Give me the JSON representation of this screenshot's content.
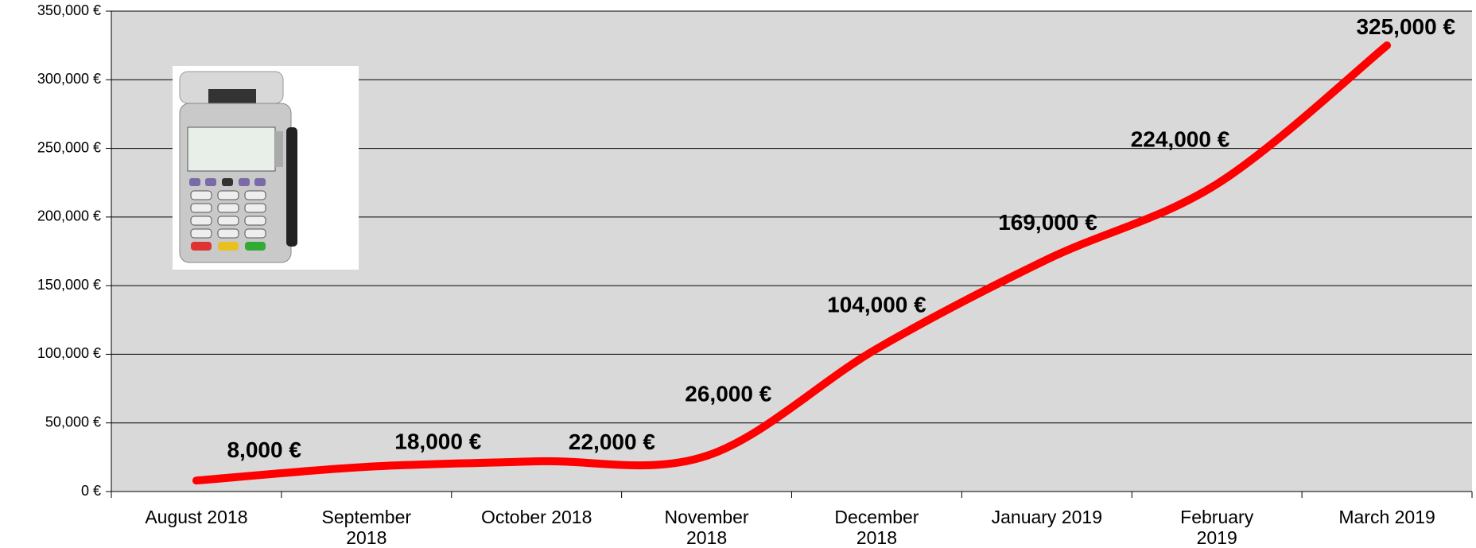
{
  "chart_data": {
    "type": "line",
    "categories": [
      "August 2018",
      "September 2018",
      "October 2018",
      "November 2018",
      "December 2018",
      "January 2019",
      "February 2019",
      "March 2019"
    ],
    "series": [
      {
        "color": "#ff0000",
        "values": [
          8000,
          18000,
          22000,
          26000,
          104000,
          169000,
          224000,
          325000
        ],
        "value_labels": [
          "8,000 €",
          "18,000 €",
          "22,000 €",
          "26,000 €",
          "104,000 €",
          "169,000 €",
          "224,000 €",
          "325,000 €"
        ]
      }
    ],
    "ylim": [
      0,
      350000
    ],
    "yticks": [
      {
        "value": 0,
        "label": "0 €"
      },
      {
        "value": 50000,
        "label": "50,000 €"
      },
      {
        "value": 100000,
        "label": "100,000 €"
      },
      {
        "value": 150000,
        "label": "150,000 €"
      },
      {
        "value": 200000,
        "label": "200,000 €"
      },
      {
        "value": 250000,
        "label": "250,000 €"
      },
      {
        "value": 300000,
        "label": "300,000 €"
      },
      {
        "value": 350000,
        "label": "350,000 €"
      }
    ],
    "grid": true
  }
}
